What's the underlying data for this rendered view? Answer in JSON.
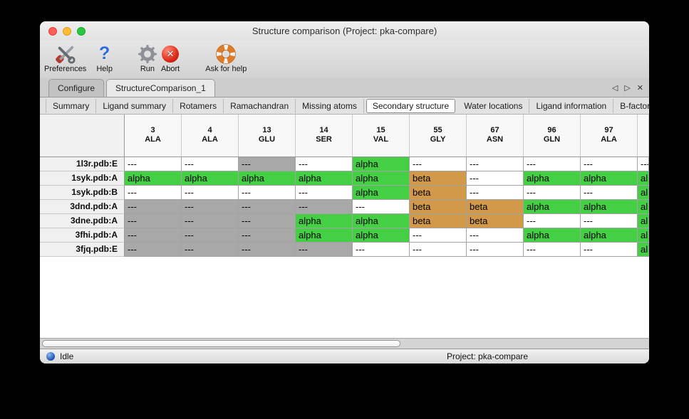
{
  "window": {
    "title": "Structure comparison (Project: pka-compare)"
  },
  "toolbar": {
    "items": [
      {
        "label": "Preferences",
        "icon": "tools-icon"
      },
      {
        "label": "Help",
        "icon": "question-mark-icon"
      },
      {
        "label": "Run",
        "icon": "gear-icon"
      },
      {
        "label": "Abort",
        "icon": "abort-x-icon"
      },
      {
        "label": "Ask for help",
        "icon": "life-ring-icon"
      }
    ]
  },
  "icons": {
    "prev": "◁",
    "next": "▷",
    "close": "✕",
    "question": "?",
    "abort": "✕"
  },
  "tabs": {
    "primary": [
      {
        "label": "Configure",
        "selected": false
      },
      {
        "label": "StructureComparison_1",
        "selected": true
      }
    ],
    "secondary": [
      {
        "label": "Summary",
        "selected": false
      },
      {
        "label": "Ligand summary",
        "selected": false
      },
      {
        "label": "Rotamers",
        "selected": false
      },
      {
        "label": "Ramachandran",
        "selected": false
      },
      {
        "label": "Missing atoms",
        "selected": false
      },
      {
        "label": "Secondary structure",
        "selected": true
      },
      {
        "label": "Water locations",
        "selected": false
      },
      {
        "label": "Ligand information",
        "selected": false
      },
      {
        "label": "B-factors",
        "selected": false
      }
    ]
  },
  "table": {
    "columns": [
      {
        "num": "3",
        "res": "ALA"
      },
      {
        "num": "4",
        "res": "ALA"
      },
      {
        "num": "13",
        "res": "GLU"
      },
      {
        "num": "14",
        "res": "SER"
      },
      {
        "num": "15",
        "res": "VAL"
      },
      {
        "num": "55",
        "res": "GLY"
      },
      {
        "num": "67",
        "res": "ASN"
      },
      {
        "num": "96",
        "res": "GLN"
      },
      {
        "num": "97",
        "res": "ALA"
      },
      {
        "num": "",
        "res": ""
      }
    ],
    "cell_styles": {
      "a": {
        "text": "alpha",
        "bg": "#44CF44"
      },
      "b": {
        "text": "beta",
        "bg": "#D2994A"
      },
      "w": {
        "text": "---",
        "bg": "#FFFFFF"
      },
      "g": {
        "text": "---",
        "bg": "#A8A8A8"
      }
    },
    "rows": [
      {
        "label": "1l3r.pdb:E",
        "cells": [
          "w",
          "w",
          "g",
          "w",
          "a",
          "w",
          "w",
          "w",
          "w",
          "w"
        ]
      },
      {
        "label": "1syk.pdb:A",
        "cells": [
          "a",
          "a",
          "a",
          "a",
          "a",
          "b",
          "w",
          "a",
          "a",
          "a"
        ]
      },
      {
        "label": "1syk.pdb:B",
        "cells": [
          "w",
          "w",
          "w",
          "w",
          "a",
          "b",
          "w",
          "w",
          "w",
          "a"
        ]
      },
      {
        "label": "3dnd.pdb:A",
        "cells": [
          "g",
          "g",
          "g",
          "g",
          "w",
          "b",
          "b",
          "a",
          "a",
          "a"
        ]
      },
      {
        "label": "3dne.pdb:A",
        "cells": [
          "g",
          "g",
          "g",
          "a",
          "a",
          "b",
          "b",
          "w",
          "w",
          "a"
        ]
      },
      {
        "label": "3fhi.pdb:A",
        "cells": [
          "g",
          "g",
          "g",
          "a",
          "a",
          "w",
          "w",
          "a",
          "a",
          "a"
        ]
      },
      {
        "label": "3fjq.pdb:E",
        "cells": [
          "g",
          "g",
          "g",
          "g",
          "w",
          "w",
          "w",
          "w",
          "w",
          "a"
        ]
      }
    ]
  },
  "status": {
    "state": "Idle",
    "project": "Project: pka-compare"
  },
  "colors": {
    "alpha_green": "#44CF44",
    "beta_orange": "#D2994A",
    "missing_gray": "#A8A8A8"
  }
}
